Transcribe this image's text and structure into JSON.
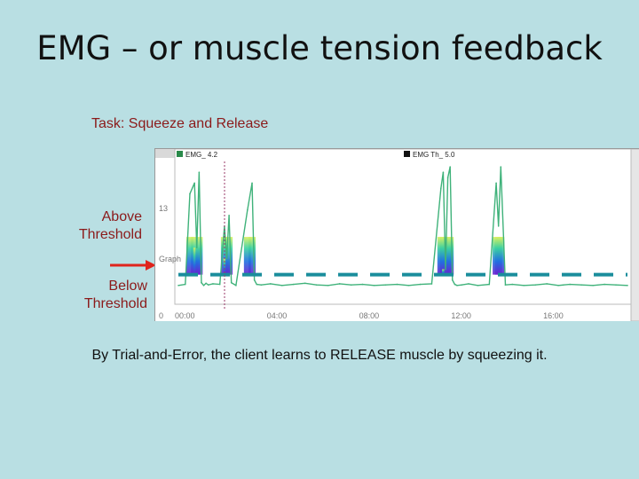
{
  "slide": {
    "title": "EMG – or muscle tension feedback",
    "task": "Task: Squeeze and Release",
    "above_label": "Above Threshold",
    "below_label": "Below Threshold",
    "caption": "By Trial-and-Error, the client learns to RELEASE muscle by squeezing it."
  },
  "colors": {
    "background": "#b9dfe3",
    "annotation_text": "#8b1a1a",
    "arrow": "#e0241c",
    "emg_line": "#3fb27a",
    "threshold": "#1a8d9c",
    "burst_low": "#6a1fd0",
    "burst_mid": "#1f6fe0",
    "burst_high": "#3ad0a0"
  },
  "chart_data": {
    "type": "line",
    "title": "",
    "legend": [
      {
        "label": "EMG_  4.2"
      },
      {
        "label": "EMG Th_  5.0"
      }
    ],
    "y_tick_labels": [
      "13",
      "Graph",
      "0"
    ],
    "x_tick_labels": [
      "00:00",
      "04:00",
      "08:00",
      "12:00",
      "16:00"
    ],
    "x_range_minutes": [
      0,
      19.5
    ],
    "y_range": [
      0,
      26
    ],
    "threshold_value": 5.0,
    "series": [
      {
        "name": "EMG",
        "x": [
          0,
          0.3,
          0.5,
          0.7,
          0.8,
          0.9,
          1.0,
          1.1,
          1.2,
          1.3,
          1.5,
          1.8,
          2.0,
          2.1,
          2.2,
          2.3,
          2.5,
          3.0,
          3.2,
          3.3,
          3.4,
          3.6,
          4.0,
          4.5,
          5.0,
          5.5,
          6.0,
          6.5,
          7.0,
          7.5,
          8.0,
          8.5,
          9.0,
          9.5,
          10.0,
          10.5,
          11.0,
          11.4,
          11.5,
          11.6,
          11.7,
          11.8,
          11.9,
          12.0,
          12.1,
          12.3,
          12.6,
          13.0,
          13.5,
          13.8,
          13.9,
          14.0,
          14.2,
          14.5,
          15.0,
          15.5,
          16.0,
          16.5,
          17.0,
          17.5,
          18.0,
          18.5,
          19.0,
          19.5
        ],
        "y": [
          3.0,
          3.2,
          20.0,
          22.0,
          10.0,
          24.0,
          3.5,
          3.0,
          3.4,
          3.1,
          3.3,
          3.2,
          14.0,
          8.0,
          16.0,
          3.5,
          3.0,
          17.0,
          22.0,
          4.0,
          3.2,
          3.1,
          3.3,
          3.0,
          3.2,
          3.4,
          3.1,
          3.0,
          3.3,
          3.1,
          3.2,
          3.0,
          3.1,
          3.2,
          3.0,
          3.2,
          3.3,
          21.0,
          24.0,
          6.0,
          23.0,
          25.0,
          4.0,
          3.2,
          3.0,
          3.1,
          3.3,
          3.0,
          3.2,
          22.0,
          14.0,
          25.0,
          3.1,
          3.2,
          3.0,
          3.1,
          3.3,
          3.0,
          3.2,
          3.1,
          3.0,
          3.2,
          3.1,
          3.0
        ]
      },
      {
        "name": "EMG Th",
        "x": [
          0,
          19.5
        ],
        "y": [
          5.0,
          5.0
        ]
      }
    ]
  }
}
